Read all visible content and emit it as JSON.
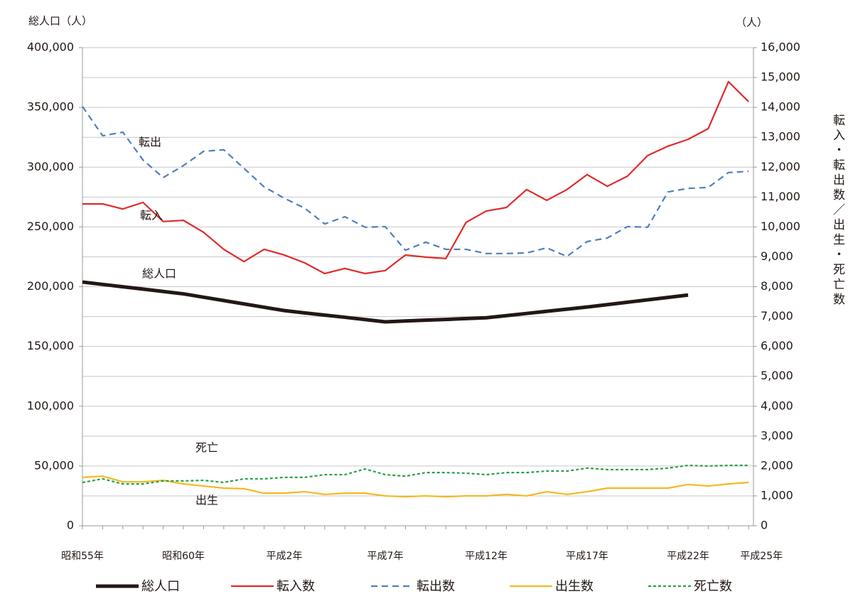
{
  "chart_data": {
    "type": "line",
    "y_label": "総人口（人）",
    "y2_unit": "（人）",
    "y2_label": "転入・転出数／出生・死亡数",
    "categories": [
      "昭和55年",
      null,
      null,
      null,
      null,
      "昭和60年",
      null,
      null,
      null,
      null,
      "平成2年",
      null,
      null,
      null,
      null,
      "平成7年",
      null,
      null,
      null,
      null,
      "平成12年",
      null,
      null,
      null,
      null,
      "平成17年",
      null,
      null,
      null,
      null,
      "平成22年",
      null,
      null,
      "平成25年"
    ],
    "ylim": [
      0,
      400000
    ],
    "yticks": [
      0,
      {
        "value": 50000,
        "label": "50,000"
      },
      {
        "value": 100000,
        "label": "100,000"
      },
      {
        "value": 150000,
        "label": "150,000"
      },
      {
        "value": 200000,
        "label": "200,000"
      },
      {
        "value": 250000,
        "label": "250,000"
      },
      {
        "value": 300000,
        "label": "300,000"
      },
      {
        "value": 350000,
        "label": "350,000"
      },
      {
        "value": 400000,
        "label": "400,000"
      }
    ],
    "y2lim": [
      0,
      16000
    ],
    "y2ticks": [
      0,
      {
        "value": 1000,
        "label": "1,000"
      },
      {
        "value": 2000,
        "label": "2,000"
      },
      {
        "value": 3000,
        "label": "3,000"
      },
      {
        "value": 4000,
        "label": "4,000"
      },
      {
        "value": 5000,
        "label": "5,000"
      },
      {
        "value": 6000,
        "label": "6,000"
      },
      {
        "value": 7000,
        "label": "7,000"
      },
      {
        "value": 8000,
        "label": "8,000"
      },
      {
        "value": 9000,
        "label": "9,000"
      },
      {
        "value": 10000,
        "label": "10,000"
      },
      {
        "value": 11000,
        "label": "11,000"
      },
      {
        "value": 12000,
        "label": "12,000"
      },
      {
        "value": 13000,
        "label": "13,000"
      },
      {
        "value": 14000,
        "label": "14,000"
      },
      {
        "value": 15000,
        "label": "15,000"
      },
      {
        "value": 16000,
        "label": "16,000"
      }
    ],
    "grid": "y2",
    "legend": "bottom",
    "series": [
      {
        "name": "総人口",
        "color": "#231815",
        "style": "solid",
        "width": 5,
        "values": [
          203900,
          201900,
          199900,
          198000,
          196000,
          194000,
          191200,
          188400,
          185600,
          182800,
          180000,
          178100,
          176200,
          174400,
          172500,
          170600,
          171300,
          172000,
          172600,
          173300,
          174000,
          175800,
          177600,
          179400,
          181200,
          183000,
          185000,
          187000,
          189000,
          191000,
          193000,
          null,
          null,
          null
        ]
      },
      {
        "name": "転入数",
        "color": "#e02a2a",
        "style": "solid",
        "width": 2.2,
        "axis": "y2",
        "values": [
          10770,
          10770,
          10600,
          10820,
          10180,
          10220,
          9820,
          9250,
          8840,
          9250,
          9060,
          8800,
          8440,
          8610,
          8440,
          8540,
          9060,
          8990,
          8940,
          10150,
          10530,
          10650,
          11250,
          10890,
          11250,
          11750,
          11360,
          11700,
          12390,
          12700,
          12930,
          13290,
          14860,
          14190
        ]
      },
      {
        "name": "転出数",
        "color": "#4f7fbf",
        "style": "dashed",
        "width": 2.2,
        "axis": "y2",
        "values": [
          14030,
          13050,
          13170,
          12240,
          11650,
          12050,
          12530,
          12580,
          11960,
          11340,
          10960,
          10630,
          10100,
          10340,
          9990,
          10010,
          9220,
          9490,
          9250,
          9250,
          9110,
          9110,
          9130,
          9300,
          9010,
          9510,
          9630,
          10010,
          9990,
          11170,
          11290,
          11320,
          11820,
          11860
        ]
      },
      {
        "name": "出生数",
        "color": "#f5b820",
        "style": "solid",
        "width": 2.2,
        "axis": "y2",
        "values": [
          1620,
          1660,
          1470,
          1470,
          1520,
          1400,
          1330,
          1260,
          1240,
          1090,
          1090,
          1140,
          1050,
          1090,
          1090,
          1000,
          970,
          1000,
          970,
          1000,
          1000,
          1050,
          1000,
          1140,
          1050,
          1140,
          1260,
          1260,
          1260,
          1260,
          1380,
          1330,
          1400,
          1450
        ]
      },
      {
        "name": "死亡数",
        "color": "#2ca044",
        "style": "dotted",
        "width": 2.2,
        "axis": "y2",
        "values": [
          1450,
          1570,
          1400,
          1400,
          1500,
          1500,
          1520,
          1450,
          1570,
          1570,
          1620,
          1620,
          1710,
          1710,
          1900,
          1710,
          1660,
          1780,
          1780,
          1760,
          1710,
          1780,
          1780,
          1830,
          1830,
          1930,
          1880,
          1880,
          1880,
          1930,
          2020,
          2000,
          2020,
          2020
        ]
      }
    ],
    "annotations": [
      "転出",
      "転入",
      "総人口",
      "死亡",
      "出生"
    ]
  }
}
